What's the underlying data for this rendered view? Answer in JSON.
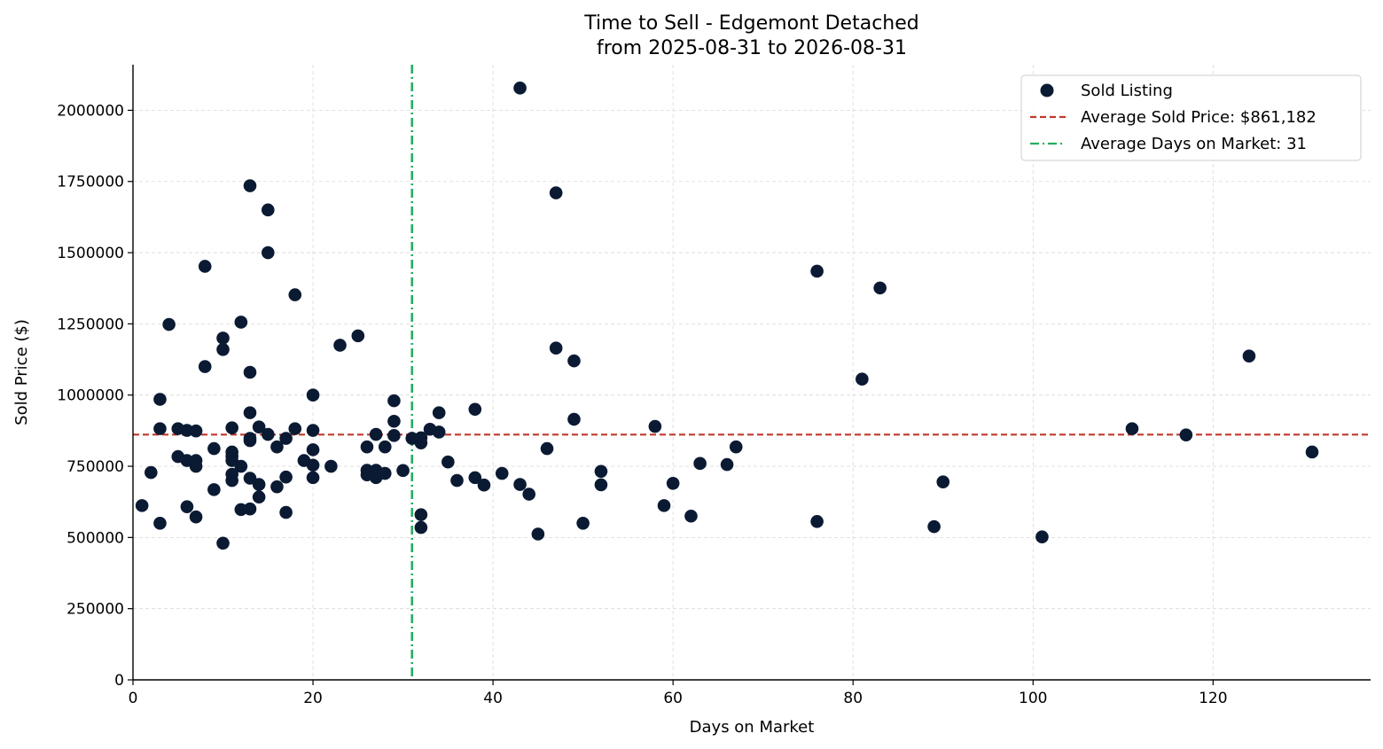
{
  "chart_data": {
    "type": "scatter",
    "title": "Time to Sell - Edgemont Detached",
    "subtitle": "from 2025-08-31 to 2026-08-31",
    "xlabel": "Days on Market",
    "ylabel": "Sold Price ($)",
    "xlim": [
      0,
      137.5
    ],
    "ylim": [
      0,
      2160000
    ],
    "xticks": [
      0,
      20,
      40,
      60,
      80,
      100,
      120
    ],
    "yticks": [
      0,
      250000,
      500000,
      750000,
      1000000,
      1250000,
      1500000,
      1750000,
      2000000
    ],
    "grid": true,
    "legend_position": "top-right",
    "colors": {
      "points": "#0b1a33",
      "avg_price": "#c0392b",
      "avg_days": "#27ae60",
      "grid": "#d9d9d9"
    },
    "legend": [
      {
        "label": "Sold Listing",
        "kind": "marker"
      },
      {
        "label": "Average Sold Price: $861,182",
        "kind": "dashed"
      },
      {
        "label": "Average Days on Market: 31",
        "kind": "dashdot"
      }
    ],
    "avg_price": 861182,
    "avg_days": 31,
    "series": [
      {
        "name": "Sold Listing",
        "points": [
          [
            1,
            612000
          ],
          [
            2,
            728000
          ],
          [
            3,
            550000
          ],
          [
            3,
            882000
          ],
          [
            3,
            985000
          ],
          [
            4,
            1248000
          ],
          [
            5,
            784000
          ],
          [
            5,
            882000
          ],
          [
            6,
            608000
          ],
          [
            6,
            770000
          ],
          [
            6,
            876000
          ],
          [
            7,
            750000
          ],
          [
            7,
            770000
          ],
          [
            7,
            874000
          ],
          [
            7,
            572000
          ],
          [
            8,
            1452000
          ],
          [
            8,
            1100000
          ],
          [
            9,
            812000
          ],
          [
            9,
            668000
          ],
          [
            10,
            1200000
          ],
          [
            10,
            1160000
          ],
          [
            10,
            480000
          ],
          [
            11,
            885000
          ],
          [
            11,
            800000
          ],
          [
            11,
            785000
          ],
          [
            11,
            770000
          ],
          [
            11,
            722000
          ],
          [
            11,
            700000
          ],
          [
            12,
            1256000
          ],
          [
            12,
            750000
          ],
          [
            12,
            598000
          ],
          [
            13,
            1735000
          ],
          [
            13,
            1080000
          ],
          [
            13,
            938000
          ],
          [
            13,
            848000
          ],
          [
            13,
            840000
          ],
          [
            13,
            708000
          ],
          [
            13,
            600000
          ],
          [
            14,
            888000
          ],
          [
            14,
            686000
          ],
          [
            14,
            642000
          ],
          [
            15,
            1650000
          ],
          [
            15,
            1500000
          ],
          [
            15,
            862000
          ],
          [
            16,
            818000
          ],
          [
            16,
            678000
          ],
          [
            17,
            848000
          ],
          [
            17,
            712000
          ],
          [
            17,
            588000
          ],
          [
            18,
            1352000
          ],
          [
            18,
            882000
          ],
          [
            19,
            770000
          ],
          [
            20,
            1000000
          ],
          [
            20,
            876000
          ],
          [
            20,
            808000
          ],
          [
            20,
            754000
          ],
          [
            20,
            710000
          ],
          [
            22,
            750000
          ],
          [
            23,
            1175000
          ],
          [
            25,
            1208000
          ],
          [
            26,
            818000
          ],
          [
            26,
            736000
          ],
          [
            26,
            720000
          ],
          [
            27,
            862000
          ],
          [
            27,
            736000
          ],
          [
            27,
            718000
          ],
          [
            27,
            710000
          ],
          [
            28,
            818000
          ],
          [
            28,
            725000
          ],
          [
            29,
            980000
          ],
          [
            29,
            908000
          ],
          [
            29,
            858000
          ],
          [
            30,
            735000
          ],
          [
            31,
            848000
          ],
          [
            32,
            850000
          ],
          [
            32,
            832000
          ],
          [
            32,
            580000
          ],
          [
            32,
            535000
          ],
          [
            33,
            880000
          ],
          [
            34,
            938000
          ],
          [
            34,
            870000
          ],
          [
            35,
            765000
          ],
          [
            36,
            700000
          ],
          [
            38,
            950000
          ],
          [
            38,
            710000
          ],
          [
            39,
            684000
          ],
          [
            41,
            725000
          ],
          [
            43,
            2078000
          ],
          [
            43,
            686000
          ],
          [
            44,
            652000
          ],
          [
            45,
            512000
          ],
          [
            46,
            812000
          ],
          [
            47,
            1710000
          ],
          [
            47,
            1165000
          ],
          [
            49,
            1120000
          ],
          [
            49,
            915000
          ],
          [
            50,
            550000
          ],
          [
            52,
            732000
          ],
          [
            52,
            685000
          ],
          [
            58,
            890000
          ],
          [
            59,
            612000
          ],
          [
            60,
            690000
          ],
          [
            62,
            575000
          ],
          [
            63,
            760000
          ],
          [
            66,
            756000
          ],
          [
            67,
            818000
          ],
          [
            76,
            1435000
          ],
          [
            76,
            556000
          ],
          [
            81,
            1056000
          ],
          [
            83,
            1376000
          ],
          [
            89,
            538000
          ],
          [
            90,
            695000
          ],
          [
            101,
            502000
          ],
          [
            111,
            882000
          ],
          [
            117,
            860000
          ],
          [
            124,
            1137000
          ],
          [
            131,
            800000
          ]
        ]
      }
    ]
  }
}
